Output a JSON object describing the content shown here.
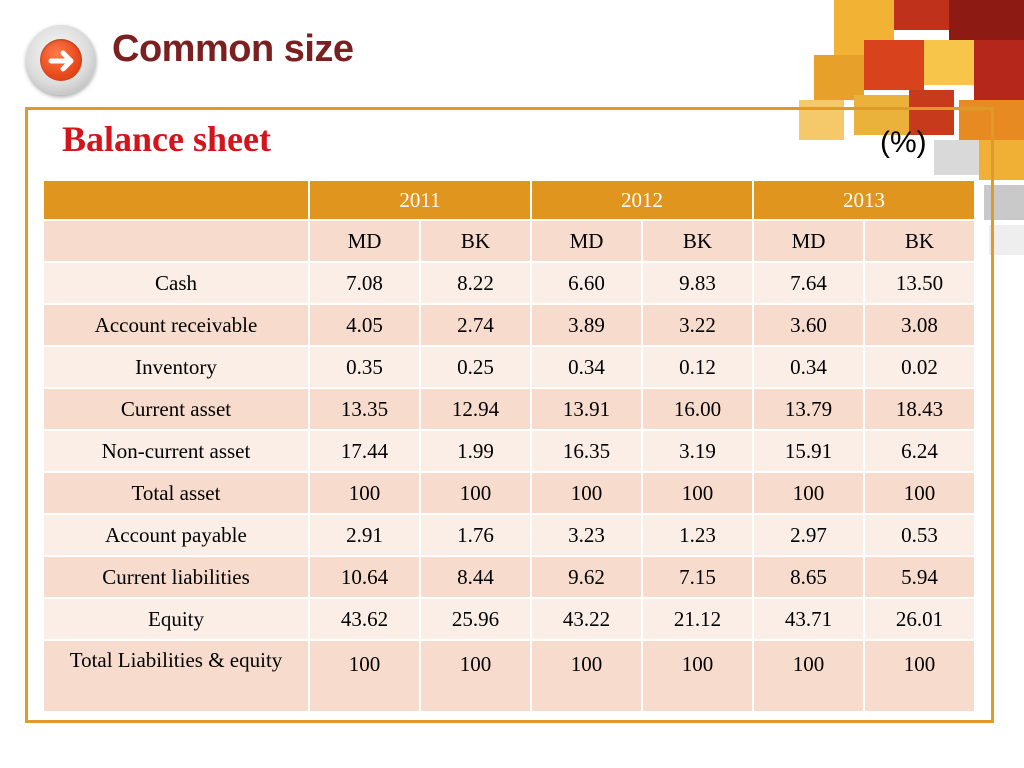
{
  "title": "Common size",
  "subtitle": "Balance sheet",
  "unit": "(%)",
  "table": {
    "years": [
      "2011",
      "2012",
      "2013"
    ],
    "subheaders": [
      "MD",
      "BK",
      "MD",
      "BK",
      "MD",
      "BK"
    ],
    "rows": [
      {
        "label": "Cash",
        "values": [
          "7.08",
          "8.22",
          "6.60",
          "9.83",
          "7.64",
          "13.50"
        ]
      },
      {
        "label": "Account receivable",
        "values": [
          "4.05",
          "2.74",
          "3.89",
          "3.22",
          "3.60",
          "3.08"
        ]
      },
      {
        "label": "Inventory",
        "values": [
          "0.35",
          "0.25",
          "0.34",
          "0.12",
          "0.34",
          "0.02"
        ]
      },
      {
        "label": "Current asset",
        "values": [
          "13.35",
          "12.94",
          "13.91",
          "16.00",
          "13.79",
          "18.43"
        ]
      },
      {
        "label": "Non-current asset",
        "values": [
          "17.44",
          "1.99",
          "16.35",
          "3.19",
          "15.91",
          "6.24"
        ]
      },
      {
        "label": "Total asset",
        "values": [
          "100",
          "100",
          "100",
          "100",
          "100",
          "100"
        ]
      },
      {
        "label": "Account payable",
        "values": [
          "2.91",
          "1.76",
          "3.23",
          "1.23",
          "2.97",
          "0.53"
        ]
      },
      {
        "label": "Current liabilities",
        "values": [
          "10.64",
          "8.44",
          "9.62",
          "7.15",
          "8.65",
          "5.94"
        ]
      },
      {
        "label": "Equity",
        "values": [
          "43.62",
          "25.96",
          "43.22",
          "21.12",
          "43.71",
          "26.01"
        ]
      },
      {
        "label": "Total Liabilities & equity",
        "values": [
          "100",
          "100",
          "100",
          "100",
          "100",
          "100"
        ]
      }
    ]
  },
  "colors": {
    "title": "#7b2020",
    "subtitle": "#d4131b",
    "header": "#e0951f",
    "row_light": "#fbeee6",
    "row_dark": "#f7dccd",
    "frame": "#e09a2a"
  },
  "icons": {
    "nav": "arrow-right-icon"
  }
}
